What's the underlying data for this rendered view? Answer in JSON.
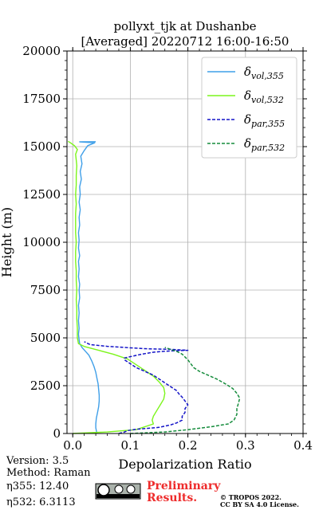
{
  "chart_data": {
    "type": "line",
    "title_lines": [
      "pollyxt_tjk at Dushanbe",
      "[Averaged] 20220712 16:00-16:50"
    ],
    "xlabel": "Depolarization Ratio",
    "ylabel": "Height (m)",
    "xlim": [
      -0.01,
      0.4
    ],
    "ylim": [
      0,
      20000
    ],
    "xticks": [
      0.0,
      0.1,
      0.2,
      0.3,
      0.4
    ],
    "xtick_labels": [
      "0.0",
      "0.1",
      "0.2",
      "0.3",
      "0.4"
    ],
    "yticks": [
      0,
      2500,
      5000,
      7500,
      10000,
      12500,
      15000,
      17500,
      20000
    ],
    "ytick_labels": [
      "0",
      "2500",
      "5000",
      "7500",
      "10000",
      "12500",
      "15000",
      "17500",
      "20000"
    ],
    "grid": true,
    "legend_position": "top-right",
    "series": [
      {
        "name": "δvol,355",
        "symbol": "δ",
        "sub": "vol,355",
        "color": "#3f9fe8",
        "dash": "solid",
        "points": [
          [
            0.042,
            0
          ],
          [
            0.041,
            150
          ],
          [
            0.04,
            300
          ],
          [
            0.04,
            500
          ],
          [
            0.041,
            800
          ],
          [
            0.043,
            1100
          ],
          [
            0.045,
            1400
          ],
          [
            0.046,
            1700
          ],
          [
            0.046,
            2000
          ],
          [
            0.045,
            2300
          ],
          [
            0.044,
            2600
          ],
          [
            0.042,
            2900
          ],
          [
            0.04,
            3200
          ],
          [
            0.037,
            3500
          ],
          [
            0.033,
            3800
          ],
          [
            0.028,
            4100
          ],
          [
            0.022,
            4300
          ],
          [
            0.016,
            4500
          ],
          [
            0.012,
            4700
          ],
          [
            0.011,
            4900
          ],
          [
            0.01,
            5200
          ],
          [
            0.011,
            5500
          ],
          [
            0.01,
            5900
          ],
          [
            0.011,
            6300
          ],
          [
            0.01,
            6700
          ],
          [
            0.012,
            7100
          ],
          [
            0.011,
            7500
          ],
          [
            0.012,
            7800
          ],
          [
            0.01,
            8200
          ],
          [
            0.011,
            8600
          ],
          [
            0.01,
            9000
          ],
          [
            0.012,
            9300
          ],
          [
            0.01,
            9700
          ],
          [
            0.011,
            10100
          ],
          [
            0.01,
            10500
          ],
          [
            0.012,
            10900
          ],
          [
            0.011,
            11300
          ],
          [
            0.013,
            11700
          ],
          [
            0.011,
            12100
          ],
          [
            0.013,
            12500
          ],
          [
            0.012,
            12900
          ],
          [
            0.015,
            13300
          ],
          [
            0.013,
            13700
          ],
          [
            0.016,
            14100
          ],
          [
            0.014,
            14500
          ],
          [
            0.02,
            14800
          ],
          [
            0.026,
            15050
          ],
          [
            0.038,
            15200
          ],
          [
            0.012,
            15250
          ],
          [
            0.04,
            15260
          ]
        ]
      },
      {
        "name": "δvol,532",
        "symbol": "δ",
        "sub": "vol,532",
        "color": "#7cf51b",
        "dash": "solid",
        "points": [
          [
            0.0,
            0
          ],
          [
            0.06,
            80
          ],
          [
            0.11,
            200
          ],
          [
            0.14,
            500
          ],
          [
            0.138,
            700
          ],
          [
            0.14,
            900
          ],
          [
            0.146,
            1200
          ],
          [
            0.152,
            1500
          ],
          [
            0.158,
            1800
          ],
          [
            0.16,
            2100
          ],
          [
            0.158,
            2400
          ],
          [
            0.15,
            2700
          ],
          [
            0.14,
            3000
          ],
          [
            0.125,
            3300
          ],
          [
            0.11,
            3600
          ],
          [
            0.095,
            3900
          ],
          [
            0.07,
            4150
          ],
          [
            0.045,
            4350
          ],
          [
            0.02,
            4550
          ],
          [
            0.01,
            4700
          ],
          [
            0.008,
            5000
          ],
          [
            0.008,
            5500
          ],
          [
            0.007,
            6000
          ],
          [
            0.007,
            6500
          ],
          [
            0.006,
            7000
          ],
          [
            0.007,
            7500
          ],
          [
            0.006,
            8000
          ],
          [
            0.006,
            8500
          ],
          [
            0.005,
            9000
          ],
          [
            0.005,
            9500
          ],
          [
            0.006,
            10000
          ],
          [
            0.005,
            10500
          ],
          [
            0.005,
            11000
          ],
          [
            0.005,
            11500
          ],
          [
            0.006,
            12000
          ],
          [
            0.005,
            12500
          ],
          [
            0.006,
            13000
          ],
          [
            0.006,
            13500
          ],
          [
            0.007,
            14000
          ],
          [
            0.006,
            14300
          ],
          [
            0.005,
            14600
          ],
          [
            0.008,
            14850
          ],
          [
            0.003,
            15050
          ],
          [
            -0.004,
            15200
          ],
          [
            -0.008,
            15280
          ]
        ]
      },
      {
        "name": "δpar,355",
        "symbol": "δ",
        "sub": "par,355",
        "color": "#1414c8",
        "dash": "dashed",
        "points": [
          [
            0.08,
            0
          ],
          [
            0.09,
            80
          ],
          [
            0.095,
            150
          ],
          [
            0.11,
            220
          ],
          [
            0.15,
            320
          ],
          [
            0.17,
            450
          ],
          [
            0.18,
            550
          ],
          [
            0.19,
            700
          ],
          [
            0.19,
            900
          ],
          [
            0.195,
            1100
          ],
          [
            0.195,
            1300
          ],
          [
            0.2,
            1500
          ],
          [
            0.195,
            1700
          ],
          [
            0.19,
            1900
          ],
          [
            0.185,
            2050
          ],
          [
            0.18,
            2250
          ],
          [
            0.17,
            2450
          ],
          [
            0.16,
            2650
          ],
          [
            0.15,
            2850
          ],
          [
            0.14,
            3050
          ],
          [
            0.125,
            3250
          ],
          [
            0.11,
            3450
          ],
          [
            0.1,
            3650
          ],
          [
            0.09,
            3850
          ],
          [
            0.09,
            3950
          ],
          [
            0.105,
            4050
          ],
          [
            0.12,
            4150
          ],
          [
            0.14,
            4250
          ],
          [
            0.16,
            4300
          ],
          [
            0.18,
            4330
          ],
          [
            0.2,
            4350
          ],
          [
            0.17,
            4400
          ],
          [
            0.13,
            4430
          ],
          [
            0.1,
            4480
          ],
          [
            0.06,
            4560
          ],
          [
            0.03,
            4650
          ],
          [
            0.02,
            4800
          ]
        ]
      },
      {
        "name": "δpar,532",
        "symbol": "δ",
        "sub": "par,532",
        "color": "#158c3c",
        "dash": "dashed",
        "points": [
          [
            0.1,
            0
          ],
          [
            0.16,
            80
          ],
          [
            0.2,
            200
          ],
          [
            0.24,
            350
          ],
          [
            0.27,
            500
          ],
          [
            0.28,
            700
          ],
          [
            0.285,
            1000
          ],
          [
            0.285,
            1300
          ],
          [
            0.288,
            1600
          ],
          [
            0.29,
            1850
          ],
          [
            0.285,
            2100
          ],
          [
            0.278,
            2350
          ],
          [
            0.265,
            2600
          ],
          [
            0.25,
            2850
          ],
          [
            0.235,
            3050
          ],
          [
            0.22,
            3250
          ],
          [
            0.21,
            3450
          ],
          [
            0.205,
            3650
          ],
          [
            0.2,
            3850
          ],
          [
            0.195,
            4000
          ],
          [
            0.19,
            4150
          ],
          [
            0.18,
            4300
          ],
          [
            0.17,
            4400
          ],
          [
            0.16,
            4500
          ]
        ]
      }
    ],
    "footer": {
      "version": "Version: 3.5",
      "method": "Method: Raman",
      "eta355": "η355:  12.40",
      "eta532": "η532: 6.3113",
      "prelim_line1": "Preliminary",
      "prelim_line2": "Results.",
      "copyright_line1": "© TROPOS 2022.",
      "copyright_line2": "CC BY SA 4.0 License.",
      "cc_badge": "cc-by-sa-badge"
    }
  }
}
